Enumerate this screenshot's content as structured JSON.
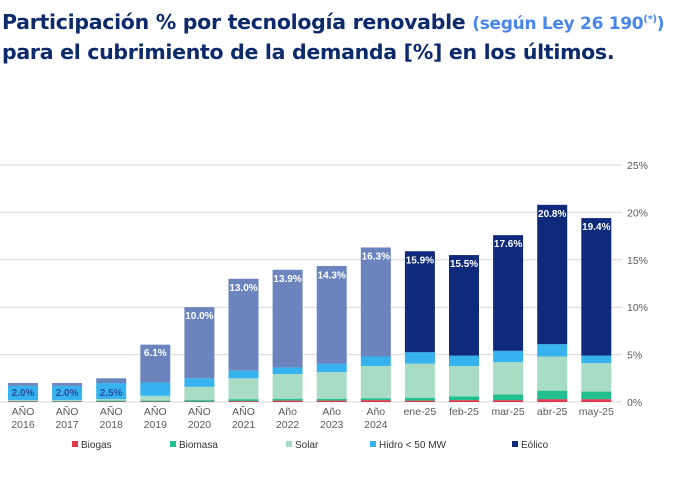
{
  "title": {
    "main_1": "Participación % por tecnología renovable ",
    "sub": "(según Ley 26 190",
    "sup": "(*)",
    "sub_close": ")",
    "main_2": "para el cubrimiento de la demanda [%] en los últimos."
  },
  "chart_data": {
    "type": "bar",
    "stacked": true,
    "categories": [
      [
        "AÑO",
        "2016"
      ],
      [
        "AÑO",
        "2017"
      ],
      [
        "AÑO",
        "2018"
      ],
      [
        "AÑO",
        "2019"
      ],
      [
        "AÑO",
        "2020"
      ],
      [
        "AÑO",
        "2021"
      ],
      [
        "Año",
        "2022"
      ],
      [
        "Año",
        "2023"
      ],
      [
        "Año",
        "2024"
      ],
      [
        "ene-25"
      ],
      [
        "feb-25"
      ],
      [
        "mar-25"
      ],
      [
        "abr-25"
      ],
      [
        "may-25"
      ]
    ],
    "series": [
      {
        "name": "Biogas",
        "color": "#e03a4e",
        "values": [
          0.05,
          0.05,
          0.05,
          0.05,
          0.05,
          0.1,
          0.15,
          0.15,
          0.2,
          0.15,
          0.2,
          0.2,
          0.3,
          0.3
        ]
      },
      {
        "name": "Biomasa",
        "color": "#1fbf8f",
        "values": [
          0.05,
          0.05,
          0.1,
          0.1,
          0.15,
          0.2,
          0.2,
          0.2,
          0.2,
          0.3,
          0.4,
          0.6,
          0.9,
          0.8
        ]
      },
      {
        "name": "Solar",
        "color": "#a8dcc4",
        "values": [
          0.1,
          0.1,
          0.15,
          0.5,
          1.4,
          2.2,
          2.6,
          2.8,
          3.4,
          3.6,
          3.2,
          3.4,
          3.6,
          3.0
        ]
      },
      {
        "name": "Hidro < 50 MW",
        "color": "#36b3ee",
        "values": [
          1.5,
          1.5,
          1.7,
          1.4,
          0.9,
          0.8,
          0.7,
          0.9,
          1.0,
          1.2,
          1.1,
          1.2,
          1.3,
          0.8
        ]
      },
      {
        "name": "Eólico",
        "colors": [
          "#6b84bd",
          "#0f2a7a"
        ],
        "values": [
          0.3,
          0.3,
          0.5,
          4.0,
          7.5,
          9.7,
          10.3,
          10.3,
          11.5,
          10.65,
          10.6,
          12.2,
          14.7,
          14.5
        ]
      }
    ],
    "totals": [
      2.0,
      2.0,
      2.5,
      6.1,
      10.0,
      13.0,
      13.9,
      14.3,
      16.3,
      15.9,
      15.5,
      17.6,
      20.8,
      19.4
    ],
    "total_labels": [
      "2.0%",
      "2.0%",
      "2.5%",
      "6.1%",
      "10.0%",
      "13.0%",
      "13.9%",
      "14.3%",
      "16.3%",
      "15.9%",
      "15.5%",
      "17.6%",
      "20.8%",
      "19.4%"
    ],
    "ylim": [
      0,
      25
    ],
    "y_ticks": [
      0,
      5,
      10,
      15,
      20,
      25
    ],
    "y_tick_labels": [
      "0%",
      "5%",
      "10%",
      "15%",
      "20%",
      "25%"
    ],
    "y_axis_position": "right",
    "grid": true,
    "legend": "bottom",
    "colors": {
      "grid": "#d9d9d9",
      "axis_text": "#595959",
      "annual_bar": "#6b84bd",
      "monthly_bar": "#0f2a7a",
      "label_white": "#ffffff",
      "label_navy": "#2a4d9b"
    }
  }
}
